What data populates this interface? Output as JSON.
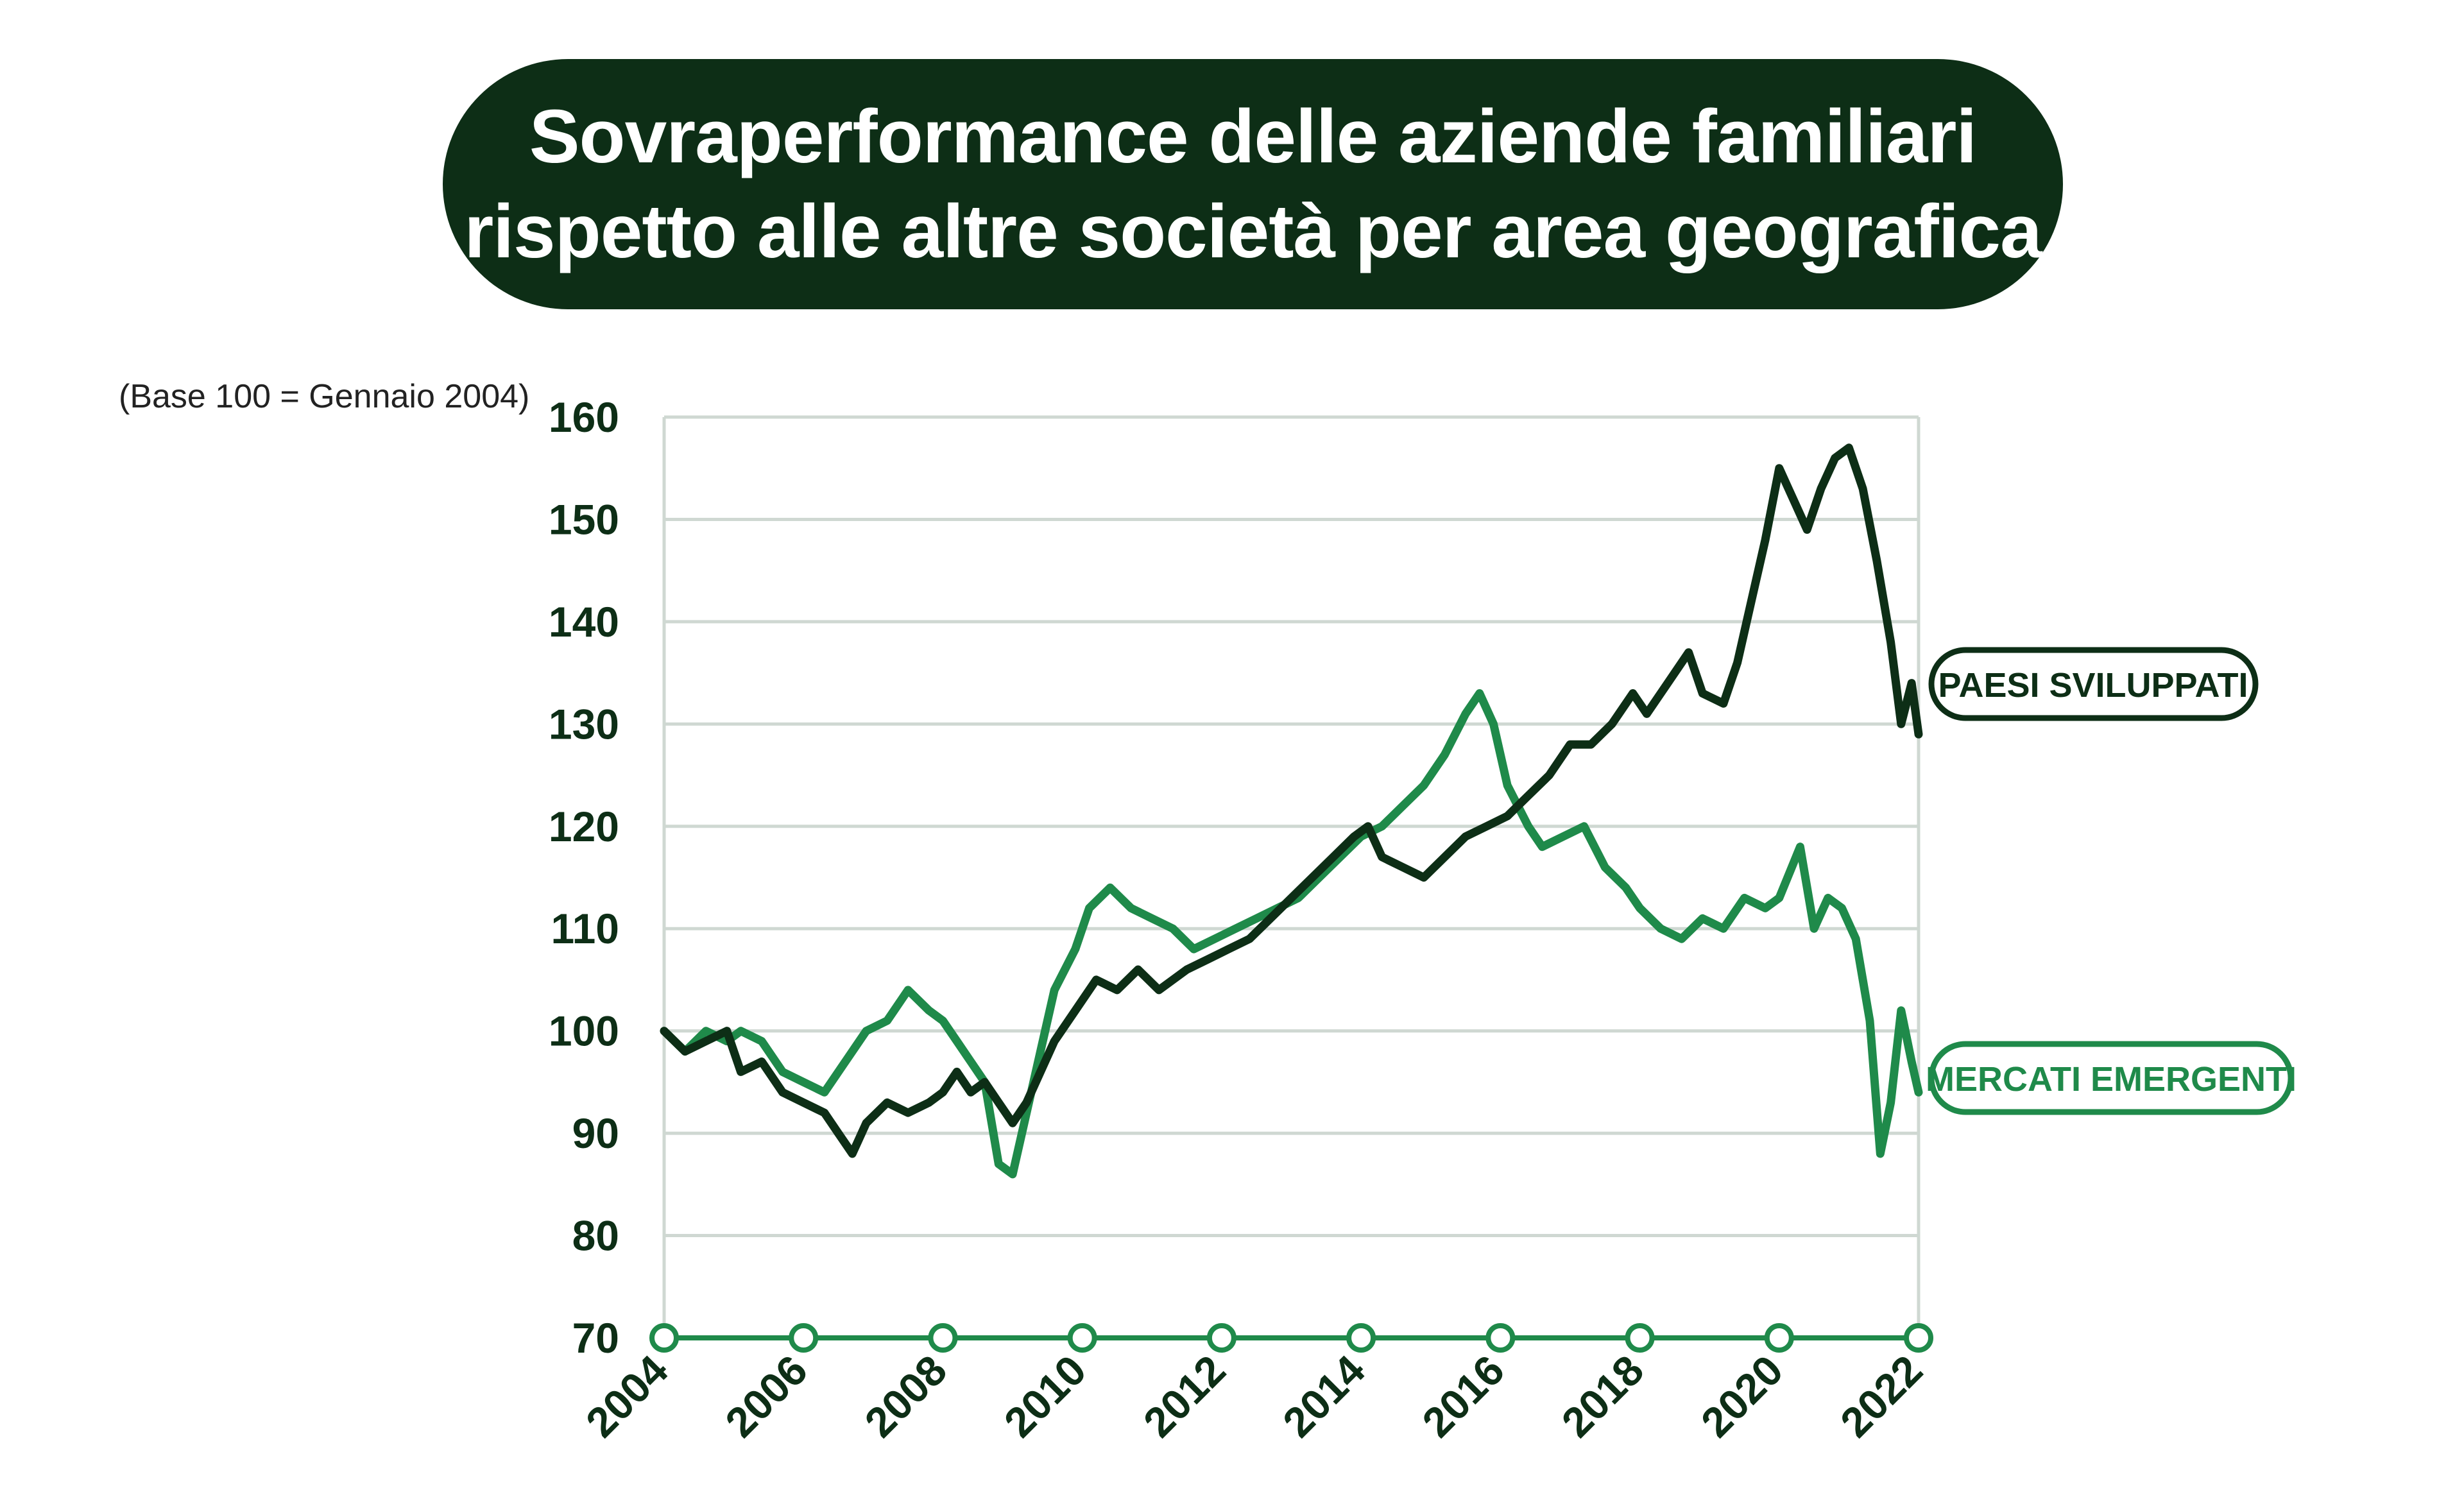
{
  "title": {
    "line1": "Sovraperformance delle aziende familiari",
    "line2": "rispetto alle altre società per area geografica"
  },
  "colors": {
    "developed": "#0d2e16",
    "emerging": "#1f8a4a",
    "grid": "#cfd8d2",
    "axis": "#1f8a4a"
  },
  "chart_data": {
    "type": "line",
    "note": "(Base 100 = Gennaio 2004)",
    "xlim": [
      2004,
      2022
    ],
    "ylim": [
      70,
      160
    ],
    "x_ticks": [
      2004,
      2006,
      2008,
      2010,
      2012,
      2014,
      2016,
      2018,
      2020,
      2022
    ],
    "x_tick_labels": [
      "2004",
      "2006",
      "2008",
      "2010",
      "2012",
      "2014",
      "2016",
      "2018",
      "2020",
      "2022"
    ],
    "y_ticks": [
      70,
      80,
      90,
      100,
      110,
      120,
      130,
      140,
      150,
      160
    ],
    "y_tick_labels": [
      "70",
      "80",
      "90",
      "100",
      "110",
      "120",
      "130",
      "140",
      "150",
      "160"
    ],
    "grid": true,
    "series": [
      {
        "name": "PAESI SVILUPPATI",
        "points": [
          [
            2004.0,
            100
          ],
          [
            2004.3,
            98
          ],
          [
            2004.6,
            99
          ],
          [
            2004.9,
            100
          ],
          [
            2005.1,
            96
          ],
          [
            2005.4,
            97
          ],
          [
            2005.7,
            94
          ],
          [
            2006.0,
            93
          ],
          [
            2006.3,
            92
          ],
          [
            2006.5,
            90
          ],
          [
            2006.7,
            88
          ],
          [
            2006.9,
            91
          ],
          [
            2007.2,
            93
          ],
          [
            2007.5,
            92
          ],
          [
            2007.8,
            93
          ],
          [
            2008.0,
            94
          ],
          [
            2008.2,
            96
          ],
          [
            2008.4,
            94
          ],
          [
            2008.6,
            95
          ],
          [
            2008.8,
            93
          ],
          [
            2009.0,
            91
          ],
          [
            2009.2,
            93
          ],
          [
            2009.4,
            96
          ],
          [
            2009.6,
            99
          ],
          [
            2009.9,
            102
          ],
          [
            2010.2,
            105
          ],
          [
            2010.5,
            104
          ],
          [
            2010.8,
            106
          ],
          [
            2011.1,
            104
          ],
          [
            2011.5,
            106
          ],
          [
            2011.8,
            107
          ],
          [
            2012.1,
            108
          ],
          [
            2012.4,
            109
          ],
          [
            2012.7,
            111
          ],
          [
            2013.0,
            113
          ],
          [
            2013.3,
            115
          ],
          [
            2013.6,
            117
          ],
          [
            2013.9,
            119
          ],
          [
            2014.1,
            120
          ],
          [
            2014.3,
            117
          ],
          [
            2014.6,
            116
          ],
          [
            2014.9,
            115
          ],
          [
            2015.2,
            117
          ],
          [
            2015.5,
            119
          ],
          [
            2015.8,
            120
          ],
          [
            2016.1,
            121
          ],
          [
            2016.4,
            123
          ],
          [
            2016.7,
            125
          ],
          [
            2017.0,
            128
          ],
          [
            2017.3,
            128
          ],
          [
            2017.6,
            130
          ],
          [
            2017.9,
            133
          ],
          [
            2018.1,
            131
          ],
          [
            2018.4,
            134
          ],
          [
            2018.7,
            137
          ],
          [
            2018.9,
            133
          ],
          [
            2019.2,
            132
          ],
          [
            2019.4,
            136
          ],
          [
            2019.6,
            142
          ],
          [
            2019.8,
            148
          ],
          [
            2020.0,
            155
          ],
          [
            2020.2,
            152
          ],
          [
            2020.4,
            149
          ],
          [
            2020.6,
            153
          ],
          [
            2020.8,
            156
          ],
          [
            2021.0,
            157
          ],
          [
            2021.2,
            153
          ],
          [
            2021.4,
            146
          ],
          [
            2021.6,
            138
          ],
          [
            2021.75,
            130
          ],
          [
            2021.9,
            134
          ],
          [
            2022.0,
            129
          ]
        ]
      },
      {
        "name": "MERCATI EMERGENTI",
        "points": [
          [
            2004.0,
            100
          ],
          [
            2004.3,
            98
          ],
          [
            2004.6,
            100
          ],
          [
            2004.9,
            99
          ],
          [
            2005.1,
            100
          ],
          [
            2005.4,
            99
          ],
          [
            2005.7,
            96
          ],
          [
            2006.0,
            95
          ],
          [
            2006.3,
            94
          ],
          [
            2006.6,
            97
          ],
          [
            2006.9,
            100
          ],
          [
            2007.2,
            101
          ],
          [
            2007.5,
            104
          ],
          [
            2007.8,
            102
          ],
          [
            2008.0,
            101
          ],
          [
            2008.2,
            99
          ],
          [
            2008.4,
            97
          ],
          [
            2008.6,
            95
          ],
          [
            2008.8,
            87
          ],
          [
            2009.0,
            86
          ],
          [
            2009.2,
            92
          ],
          [
            2009.4,
            98
          ],
          [
            2009.6,
            104
          ],
          [
            2009.9,
            108
          ],
          [
            2010.1,
            112
          ],
          [
            2010.4,
            114
          ],
          [
            2010.7,
            112
          ],
          [
            2011.0,
            111
          ],
          [
            2011.3,
            110
          ],
          [
            2011.6,
            108
          ],
          [
            2011.9,
            109
          ],
          [
            2012.2,
            110
          ],
          [
            2012.5,
            111
          ],
          [
            2012.8,
            112
          ],
          [
            2013.1,
            113
          ],
          [
            2013.4,
            115
          ],
          [
            2013.7,
            117
          ],
          [
            2014.0,
            119
          ],
          [
            2014.3,
            120
          ],
          [
            2014.6,
            122
          ],
          [
            2014.9,
            124
          ],
          [
            2015.2,
            127
          ],
          [
            2015.5,
            131
          ],
          [
            2015.7,
            133
          ],
          [
            2015.9,
            130
          ],
          [
            2016.1,
            124
          ],
          [
            2016.4,
            120
          ],
          [
            2016.6,
            118
          ],
          [
            2016.9,
            119
          ],
          [
            2017.2,
            120
          ],
          [
            2017.5,
            116
          ],
          [
            2017.8,
            114
          ],
          [
            2018.0,
            112
          ],
          [
            2018.3,
            110
          ],
          [
            2018.6,
            109
          ],
          [
            2018.9,
            111
          ],
          [
            2019.2,
            110
          ],
          [
            2019.5,
            113
          ],
          [
            2019.8,
            112
          ],
          [
            2020.0,
            113
          ],
          [
            2020.3,
            118
          ],
          [
            2020.5,
            110
          ],
          [
            2020.7,
            113
          ],
          [
            2020.9,
            112
          ],
          [
            2021.1,
            109
          ],
          [
            2021.3,
            101
          ],
          [
            2021.45,
            88
          ],
          [
            2021.6,
            93
          ],
          [
            2021.75,
            102
          ],
          [
            2021.9,
            97
          ],
          [
            2022.0,
            94
          ]
        ]
      }
    ]
  }
}
